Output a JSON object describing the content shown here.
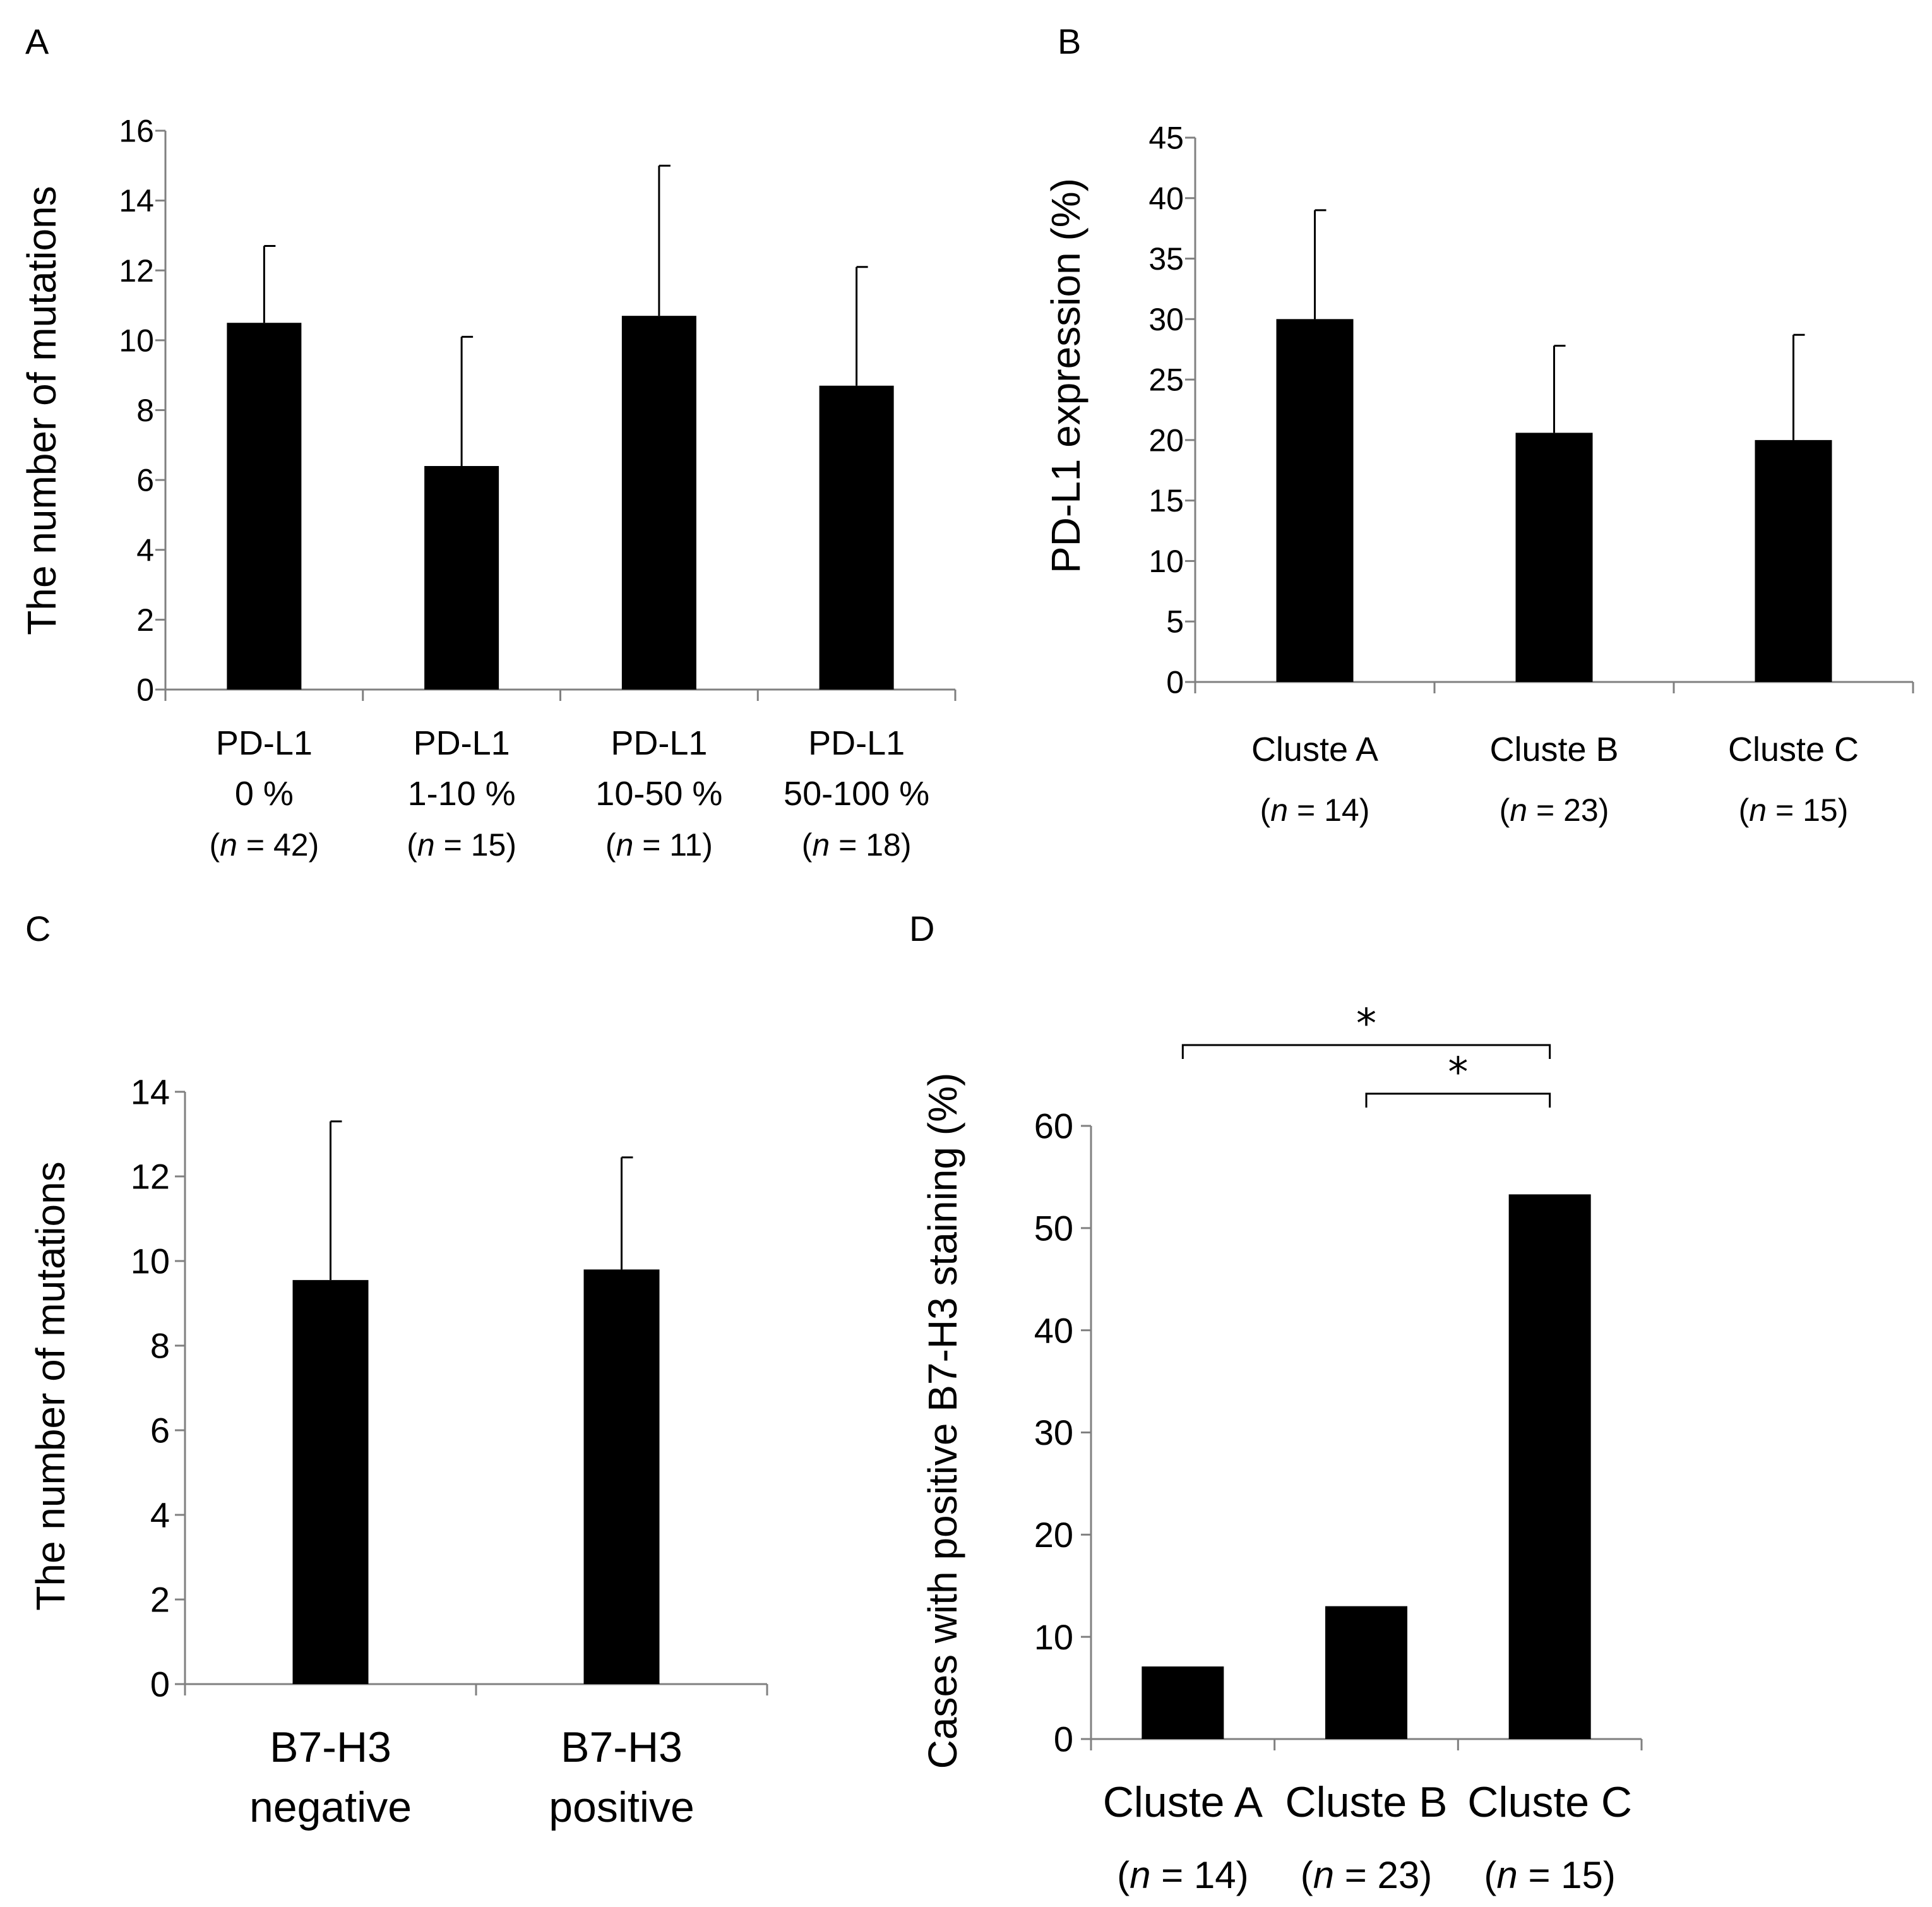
{
  "chart_data": [
    {
      "panel": "A",
      "type": "bar",
      "ylabel": "The number of mutations",
      "ylim": [
        0,
        16
      ],
      "yticks": [
        0,
        2,
        4,
        6,
        8,
        10,
        12,
        14,
        16
      ],
      "categories": [
        {
          "line1": "PD-L1",
          "line2": "0 %",
          "n_prefix": "(",
          "n_var": "n",
          "n_rest": " = 42)"
        },
        {
          "line1": "PD-L1",
          "line2": "1-10 %",
          "n_prefix": "(",
          "n_var": "n",
          "n_rest": " = 15)"
        },
        {
          "line1": "PD-L1",
          "line2": "10-50 %",
          "n_prefix": "(",
          "n_var": "n",
          "n_rest": " = 11)"
        },
        {
          "line1": "PD-L1",
          "line2": "50-100 %",
          "n_prefix": "(",
          "n_var": "n",
          "n_rest": " = 18)"
        }
      ],
      "values": [
        10.5,
        6.4,
        10.7,
        8.7
      ],
      "errors": [
        2.2,
        3.7,
        4.3,
        3.4
      ]
    },
    {
      "panel": "B",
      "type": "bar",
      "ylabel": "PD-L1 expression (%)",
      "ylim": [
        0,
        45
      ],
      "yticks": [
        0,
        5,
        10,
        15,
        20,
        25,
        30,
        35,
        40,
        45
      ],
      "categories": [
        {
          "line1": "Cluste A",
          "n_prefix": "(",
          "n_var": "n",
          "n_rest": " = 14)"
        },
        {
          "line1": "Cluste B",
          "n_prefix": "(",
          "n_var": "n",
          "n_rest": " = 23)"
        },
        {
          "line1": "Cluste C",
          "n_prefix": "(",
          "n_var": "n",
          "n_rest": " = 15)"
        }
      ],
      "values": [
        30.0,
        20.6,
        20.0
      ],
      "errors": [
        9.0,
        7.2,
        8.7
      ]
    },
    {
      "panel": "C",
      "type": "bar",
      "ylabel": "The number of mutations",
      "ylim": [
        0,
        14
      ],
      "yticks": [
        0,
        2,
        4,
        6,
        8,
        10,
        12,
        14
      ],
      "categories": [
        {
          "line1": "B7-H3",
          "line2": "negative"
        },
        {
          "line1": "B7-H3",
          "line2": "positive"
        }
      ],
      "values": [
        9.55,
        9.8
      ],
      "errors": [
        3.75,
        2.65
      ]
    },
    {
      "panel": "D",
      "type": "bar",
      "ylabel": "Cases with positive B7-H3 staining (%)",
      "ylim": [
        0,
        60
      ],
      "yticks": [
        0,
        10,
        20,
        30,
        40,
        50,
        60
      ],
      "categories": [
        {
          "line1": "Cluste A",
          "n_prefix": "(",
          "n_var": "n",
          "n_rest": " = 14)"
        },
        {
          "line1": "Cluste B",
          "n_prefix": "(",
          "n_var": "n",
          "n_rest": " = 23)"
        },
        {
          "line1": "Cluste C",
          "n_prefix": "(",
          "n_var": "n",
          "n_rest": " = 15)"
        }
      ],
      "values": [
        7.1,
        13.0,
        53.3
      ],
      "significance": [
        {
          "from": 0,
          "to": 2,
          "label": "*"
        },
        {
          "from": 1,
          "to": 2,
          "label": "*"
        }
      ]
    }
  ]
}
